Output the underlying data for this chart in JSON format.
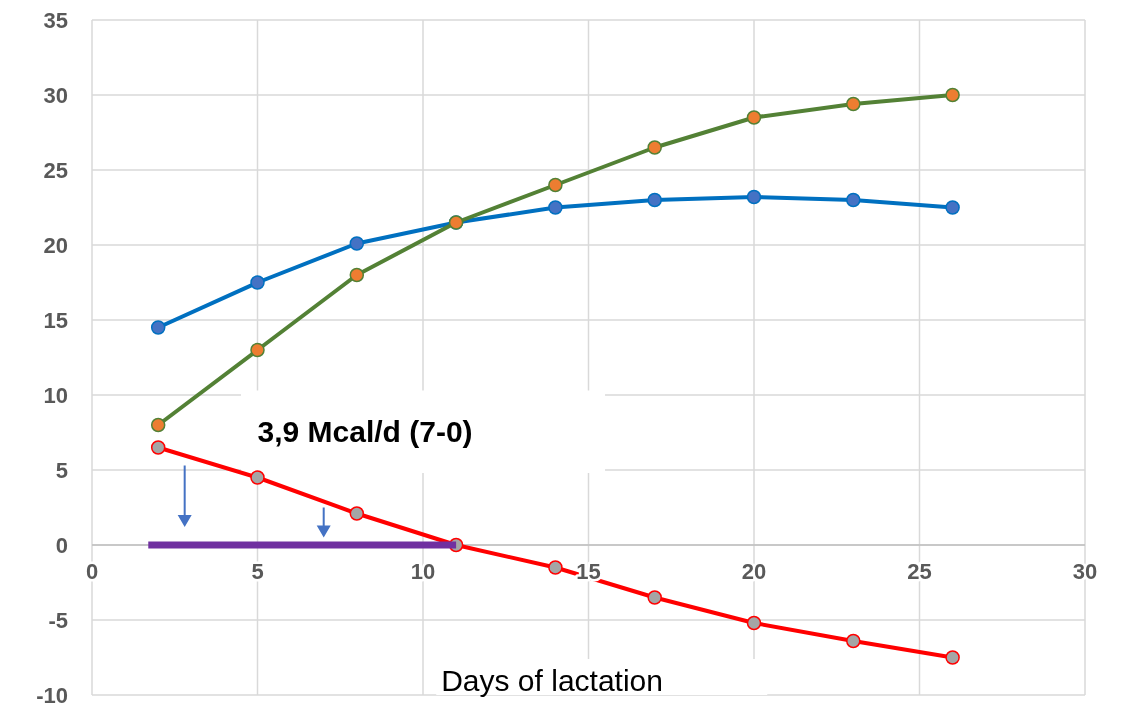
{
  "chart_data": {
    "type": "line",
    "xlabel": "Days of lactation",
    "annotations": [
      "3,9 Mcal/d (7-0)"
    ],
    "xlim": [
      0,
      30
    ],
    "xticks": [
      0,
      5,
      10,
      15,
      20,
      25,
      30
    ],
    "ylim": [
      -10,
      35
    ],
    "yticks": [
      -10,
      -5,
      0,
      5,
      10,
      15,
      20,
      25,
      30,
      35
    ],
    "grid": true,
    "marker": "circle",
    "line_style": "solid",
    "series": [
      {
        "color": "#0070c0",
        "colors": [
          "#4472c4",
          "#4472c4",
          "#4472c4",
          "#4472c4",
          "#4472c4",
          "#4472c4",
          "#4472c4",
          "#4472c4",
          "#4472c4"
        ],
        "x": [
          2,
          5,
          8,
          11,
          14,
          17,
          20,
          23,
          26
        ],
        "values": [
          14.5,
          17.5,
          20.1,
          21.5,
          22.5,
          23.0,
          23.2,
          23.0,
          22.5
        ]
      },
      {
        "color": "#538135",
        "colors": [
          "#ed7d31",
          "#ed7d31",
          "#ed7d31",
          "#ed7d31",
          "#ed7d31",
          "#ed7d31",
          "#ed7d31",
          "#ed7d31",
          "#ed7d31"
        ],
        "x": [
          2,
          5,
          8,
          11,
          14,
          17,
          20,
          23,
          26
        ],
        "values": [
          8,
          13,
          18,
          21.5,
          24,
          26.5,
          28.5,
          29.4,
          30
        ]
      },
      {
        "color": "#ff0000",
        "colors": [
          "#a5a5a5",
          "#a5a5a5",
          "#a5a5a5",
          "#a5a5a5",
          "#a5a5a5",
          "#a5a5a5",
          "#a5a5a5",
          "#a5a5a5",
          "#a5a5a5"
        ],
        "x": [
          2,
          5,
          8,
          11,
          14,
          17,
          20,
          23,
          26
        ],
        "values": [
          6.5,
          4.5,
          2.1,
          0,
          -1.5,
          -3.5,
          -5.2,
          -6.4,
          -7.5
        ]
      },
      {
        "color": "#7030a0",
        "marker": "none",
        "x": [
          1.7,
          11
        ],
        "values": [
          0,
          0
        ]
      }
    ]
  }
}
